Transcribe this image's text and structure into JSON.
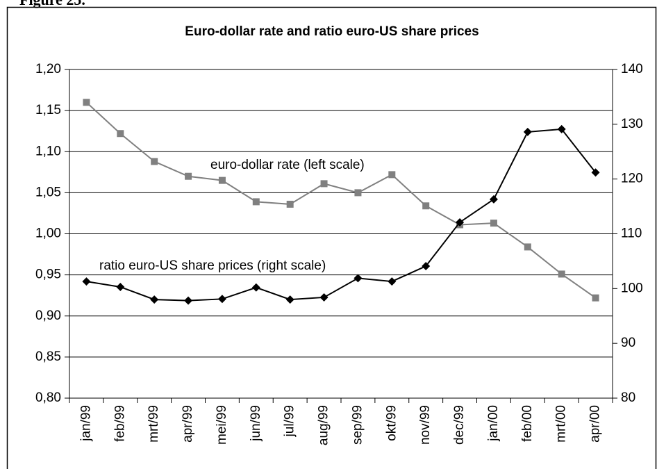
{
  "caption": "Figure 25.",
  "chart_data": {
    "type": "line",
    "title": "Euro-dollar rate and ratio euro-US share prices",
    "categories": [
      "jan/99",
      "feb/99",
      "mrt/99",
      "apr/99",
      "mei/99",
      "jun/99",
      "jul/99",
      "aug/99",
      "sep/99",
      "okt/99",
      "nov/99",
      "dec/99",
      "jan/00",
      "feb/00",
      "mrt/00",
      "apr/00"
    ],
    "series": [
      {
        "name": "euro-dollar rate (left scale)",
        "color": "#808080",
        "marker": "square",
        "values": [
          1.16,
          1.122,
          1.088,
          1.07,
          1.065,
          1.039,
          1.036,
          1.061,
          1.05,
          1.072,
          1.034,
          1.011,
          1.013,
          0.984,
          0.951,
          0.922
        ]
      },
      {
        "name": "ratio euro-US share prices (right scale)",
        "color": "#000000",
        "marker": "diamond",
        "axis": "y2",
        "values": [
          101.3,
          100.3,
          98.0,
          97.8,
          98.1,
          100.2,
          98.0,
          98.4,
          101.9,
          101.3,
          104.1,
          112.1,
          116.3,
          128.6,
          129.1,
          121.2
        ]
      }
    ],
    "ylim": [
      0.8,
      1.2
    ],
    "yticks": [
      {
        "value": 0.8,
        "label": "0,80"
      },
      {
        "value": 0.85,
        "label": "0,85"
      },
      {
        "value": 0.9,
        "label": "0,90"
      },
      {
        "value": 0.95,
        "label": "0,95"
      },
      {
        "value": 1.0,
        "label": "1,00"
      },
      {
        "value": 1.05,
        "label": "1,05"
      },
      {
        "value": 1.1,
        "label": "1,10"
      },
      {
        "value": 1.15,
        "label": "1,15"
      },
      {
        "value": 1.2,
        "label": "1,20"
      }
    ],
    "y2lim": [
      80,
      140
    ],
    "y2ticks": [
      80,
      90,
      100,
      110,
      120,
      130,
      140
    ],
    "grid": true
  }
}
